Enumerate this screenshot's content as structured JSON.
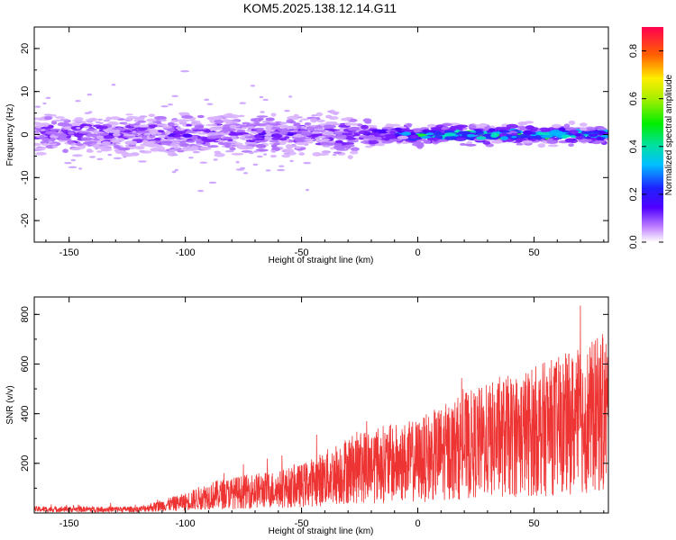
{
  "title": "KOM5.2025.138.12.14.G11",
  "chart_data": [
    {
      "type": "heatmap",
      "name": "spectrogram",
      "xlabel": "Height of straight line (km)",
      "ylabel": "Frequency (Hz)",
      "xlim": [
        -165,
        82
      ],
      "ylim": [
        -25,
        25
      ],
      "xticks": [
        -150,
        -100,
        -50,
        0,
        50
      ],
      "yticks": [
        -20,
        -10,
        0,
        10,
        20
      ],
      "colorbar": {
        "label": "Normalized spectral amplitude",
        "range": [
          0,
          0.9
        ],
        "ticks": [
          0.0,
          0.2,
          0.4,
          0.6,
          0.8
        ]
      },
      "grid": false
    },
    {
      "type": "line",
      "name": "snr",
      "xlabel": "Height of straight line (km)",
      "ylabel": "SNR (v/v)",
      "xlim": [
        -165,
        82
      ],
      "ylim": [
        0,
        870
      ],
      "xticks": [
        -150,
        -100,
        -50,
        0,
        50
      ],
      "yticks": [
        200,
        400,
        600,
        800
      ],
      "color": "#ee3333",
      "envelope": {
        "x": [
          -165,
          -120,
          -110,
          -100,
          -90,
          -80,
          -70,
          -60,
          -50,
          -40,
          -30,
          -20,
          -10,
          0,
          10,
          20,
          30,
          40,
          50,
          60,
          70,
          82
        ],
        "y": [
          15,
          15,
          30,
          45,
          70,
          80,
          90,
          95,
          110,
          140,
          175,
          195,
          200,
          210,
          240,
          270,
          290,
          310,
          330,
          350,
          370,
          410
        ]
      },
      "grid": false
    }
  ]
}
